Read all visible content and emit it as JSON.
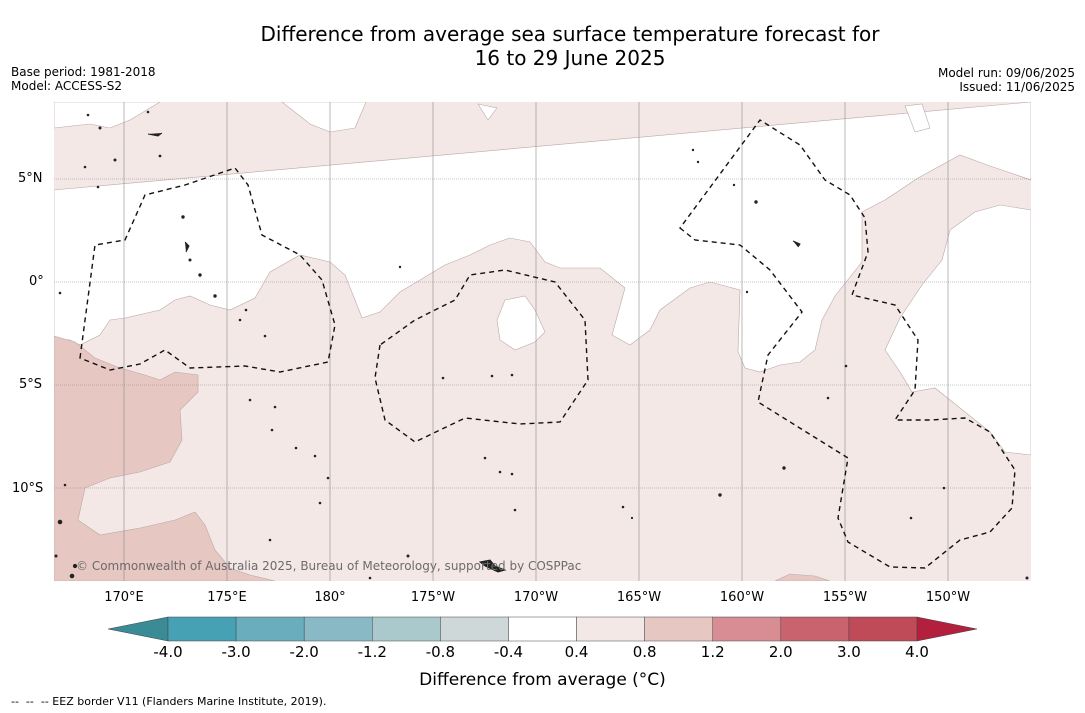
{
  "title_line1": "Difference from average sea surface temperature forecast for",
  "title_line2": "16 to 29 June 2025",
  "base_period": "Base period: 1981-2018",
  "model": "Model: ACCESS-S2",
  "model_run": "Model run: 09/06/2025",
  "issued": "Issued: 11/06/2025",
  "credit": "© Commonwealth of Australia 2025, Bureau of Meteorology, supported by COSPPac",
  "lat_labels": [
    "5°N",
    "0°",
    "5°S",
    "10°S"
  ],
  "lon_labels": [
    "170°E",
    "175°E",
    "180°",
    "175°W",
    "170°W",
    "165°W",
    "160°W",
    "155°W",
    "150°W"
  ],
  "colorbar": {
    "ticks": [
      "-4.0",
      "-3.0",
      "-2.0",
      "-1.2",
      "-0.8",
      "-0.4",
      "0.4",
      "0.8",
      "1.2",
      "2.0",
      "3.0",
      "4.0"
    ],
    "colors": [
      "#46a1b5",
      "#6aaebe",
      "#89b9c4",
      "#aac9cc",
      "#cfd8d8",
      "#ffffff",
      "#f4e8e7",
      "#e7c7c2",
      "#d78d93",
      "#c9646e",
      "#bf4a58"
    ],
    "under_color": "#3a8b95",
    "over_color": "#b2203e",
    "label": "Difference from average (°C)"
  },
  "map": {
    "land_color": "#222222",
    "anomaly_0_4_color": "#f4e8e7",
    "anomaly_0_8_color": "#e7c7c2"
  },
  "footer": "--  --  -- EEZ border V11 (Flanders Marine Institute, 2019)."
}
